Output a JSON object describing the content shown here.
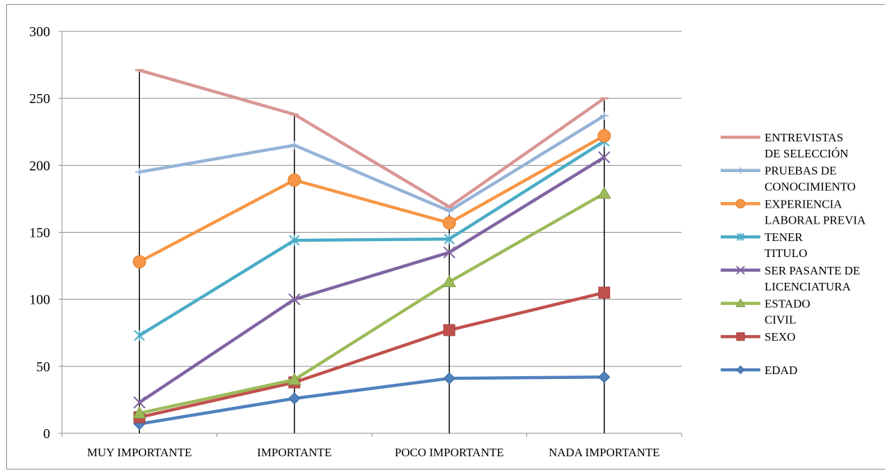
{
  "chart_data": {
    "type": "line",
    "title": "",
    "xlabel": "",
    "ylabel": "",
    "categories": [
      "MUY IMPORTANTE",
      "IMPORTANTE",
      "POCO IMPORTANTE",
      "NADA IMPORTANTE"
    ],
    "ylim": [
      0,
      300
    ],
    "yticks": [
      0,
      50,
      100,
      150,
      200,
      250,
      300
    ],
    "grid": true,
    "legend_position": "right",
    "series": [
      {
        "name": "ENTREVISTAS DE SELECCIÓN",
        "legend_lines": [
          "ENTREVISTAS",
          "DE SELECCIÓN"
        ],
        "values": [
          271,
          238,
          169,
          250
        ],
        "color": "#d99694",
        "marker": "dash"
      },
      {
        "name": "PRUEBAS DE CONOCIMIENTO",
        "legend_lines": [
          "PRUEBAS DE",
          "CONOCIMIENTO"
        ],
        "values": [
          195,
          215,
          166,
          237
        ],
        "color": "#95b3d7",
        "marker": "plus"
      },
      {
        "name": "EXPERIENCIA LABORAL PREVIA",
        "legend_lines": [
          "EXPERIENCIA",
          "LABORAL PREVIA"
        ],
        "values": [
          128,
          189,
          157,
          222
        ],
        "color": "#f79646",
        "marker": "circle"
      },
      {
        "name": "TENER TITULO",
        "legend_lines": [
          "TENER",
          "TITULO"
        ],
        "values": [
          73,
          144,
          145,
          218
        ],
        "color": "#4bacc6",
        "marker": "star"
      },
      {
        "name": "SER PASANTE DE LICENCIATURA",
        "legend_lines": [
          "SER PASANTE DE",
          "LICENCIATURA"
        ],
        "values": [
          23,
          100,
          135,
          206
        ],
        "color": "#8064a2",
        "marker": "x"
      },
      {
        "name": "ESTADO CIVIL",
        "legend_lines": [
          "ESTADO",
          "CIVIL"
        ],
        "values": [
          15,
          40,
          113,
          179
        ],
        "color": "#9bbb59",
        "marker": "triangle"
      },
      {
        "name": "SEXO",
        "legend_lines": [
          "SEXO"
        ],
        "values": [
          12,
          38,
          77,
          105
        ],
        "color": "#c0504d",
        "marker": "square"
      },
      {
        "name": "EDAD",
        "legend_lines": [
          "EDAD"
        ],
        "values": [
          7,
          26,
          41,
          42
        ],
        "color": "#4f81bd",
        "marker": "diamond"
      }
    ]
  }
}
